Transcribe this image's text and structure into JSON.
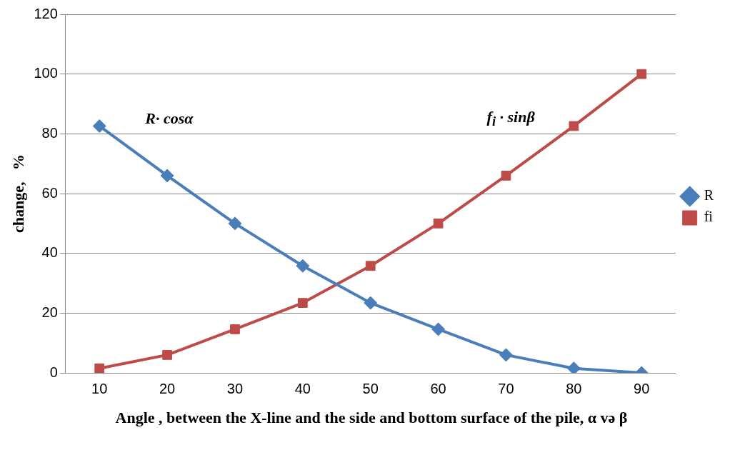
{
  "chart_data": {
    "type": "line",
    "xlabel": "Angle , between the  X-line and  the side and bottom surface of the pile, α və β",
    "ylabel": "change,   %",
    "categories": [
      "10",
      "20",
      "30",
      "40",
      "50",
      "60",
      "70",
      "80",
      "90"
    ],
    "series": [
      {
        "name": "R",
        "color": "#4a7ebb",
        "marker": "diamond",
        "values": [
          82.6,
          66,
          50,
          35.8,
          23.4,
          14.6,
          6,
          1.5,
          0
        ]
      },
      {
        "name": "fi",
        "color": "#be4b48",
        "marker": "square",
        "values": [
          1.5,
          6,
          14.6,
          23.4,
          35.8,
          50,
          66,
          82.6,
          100
        ]
      }
    ],
    "ylim": [
      0,
      120
    ],
    "yticks": [
      0,
      20,
      40,
      60,
      80,
      100,
      120
    ],
    "grid": "y",
    "legend": "right",
    "line_style": "solid",
    "annotations": [
      "R· cosα",
      "f$_{i}$ · sinβ"
    ]
  }
}
